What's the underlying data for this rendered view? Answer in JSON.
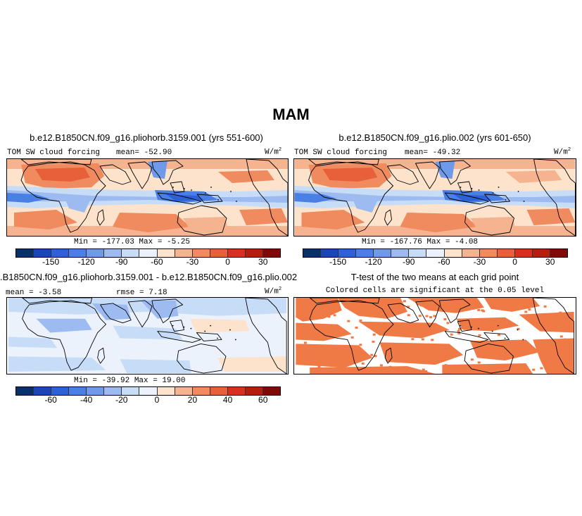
{
  "figure": {
    "title": "MAM"
  },
  "chart_data": [
    {
      "type": "heatmap",
      "title": "b.e12.B1850CN.f09_g16.pliohorb.3159.001 (yrs 551-600)",
      "variable": "TOM SW cloud forcing",
      "mean_label": "mean= -52.90",
      "units_base": "W/m",
      "units_exp": "2",
      "min_max_label": "Min = -177.03  Max = -5.25",
      "colorbar_ticks": [
        "-150",
        "-120",
        "-90",
        "-60",
        "-30",
        "0",
        "30"
      ],
      "region": "tropics, 0-360E"
    },
    {
      "type": "heatmap",
      "title": "b.e12.B1850CN.f09_g16.plio.002 (yrs 601-650)",
      "variable": "TOM SW cloud forcing",
      "mean_label": "mean= -49.32",
      "units_base": "W/m",
      "units_exp": "2",
      "min_max_label": "Min = -167.76  Max = -4.08",
      "colorbar_ticks": [
        "-150",
        "-120",
        "-90",
        "-60",
        "-30",
        "0",
        "30"
      ],
      "region": "tropics, 0-360E"
    },
    {
      "type": "heatmap",
      "title": ".B1850CN.f09_g16.pliohorb.3159.001 - b.e12.B1850CN.f09_g16.plio.002",
      "mean_label": "mean = -3.58",
      "rmse_label": "rmse = 7.18",
      "units_base": "W/m",
      "units_exp": "2",
      "min_max_label": "Min = -39.92  Max = 19.00",
      "colorbar_ticks": [
        "-60",
        "-40",
        "-20",
        "0",
        "20",
        "40",
        "60"
      ],
      "region": "tropics, 0-360E"
    },
    {
      "type": "heatmap",
      "title": "T-test of the two means at each grid point",
      "subtitle": "Colored cells are significant at the 0.05 level",
      "significance_level": 0.05,
      "region": "tropics, 0-360E"
    }
  ],
  "colors": {
    "scale": [
      "#08306b",
      "#1c45b5",
      "#2c62d6",
      "#4a7fe3",
      "#6f9ae9",
      "#9dbbf0",
      "#c7dcf7",
      "#ecf2fb",
      "#fde3cc",
      "#f6b38f",
      "#f08a5f",
      "#e8603a",
      "#d7301f",
      "#b51d0d",
      "#7d0a06"
    ],
    "significant": "#f07a45",
    "land_outline": "#000000"
  }
}
